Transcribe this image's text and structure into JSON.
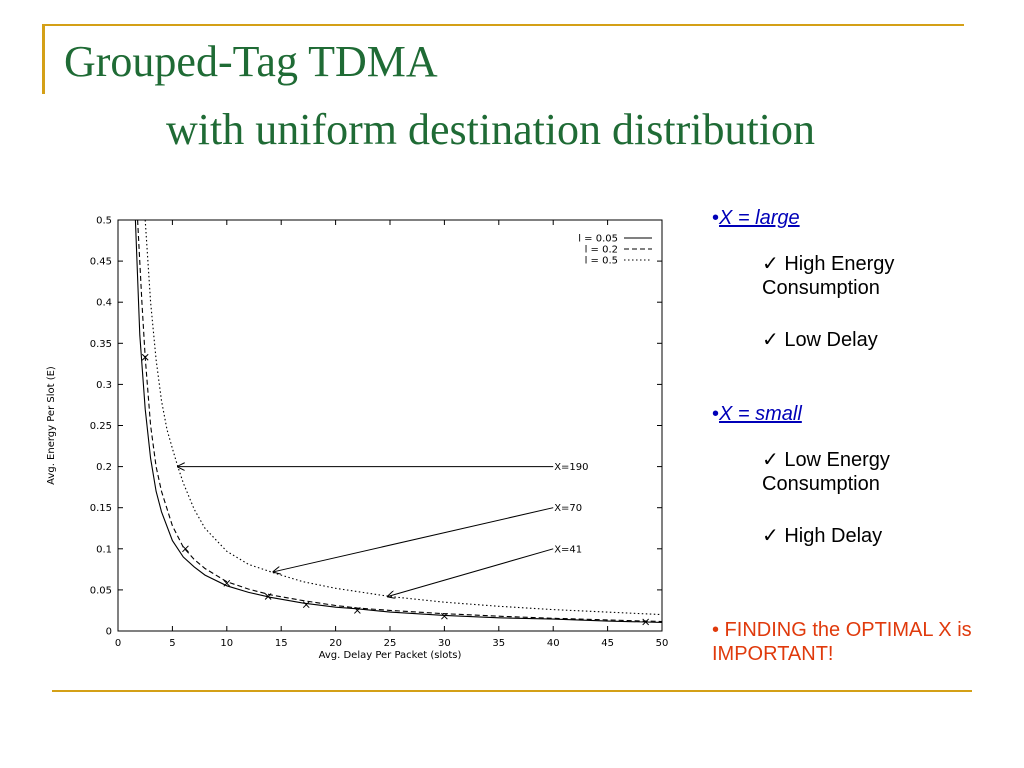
{
  "slide": {
    "title_line1": "Grouped-Tag TDMA",
    "title_line2": "with uniform destination distribution"
  },
  "bullets": [
    {
      "head": "X = large",
      "items": [
        "✓ High Energy Consumption",
        "✓ Low Delay"
      ]
    },
    {
      "head": "X = small",
      "items": [
        "✓ Low Energy Consumption",
        "✓ High Delay"
      ]
    }
  ],
  "finding": "• FINDING the OPTIMAL X is IMPORTANT!",
  "colors": {
    "title": "#1f6b35",
    "accent": "#d4a017",
    "bullet_head": "#0000b8",
    "finding": "#e03a0c"
  },
  "chart_data": {
    "type": "line",
    "xlabel": "Avg. Delay Per Packet (slots)",
    "ylabel": "Avg. Energy Per Slot (E)",
    "xlim": [
      0,
      50
    ],
    "ylim": [
      0,
      0.5
    ],
    "x_ticks": [
      0,
      5,
      10,
      15,
      20,
      25,
      30,
      35,
      40,
      45,
      50
    ],
    "y_ticks": [
      0,
      0.05,
      0.1,
      0.15,
      0.2,
      0.25,
      0.3,
      0.35,
      0.4,
      0.45,
      0.5
    ],
    "x_tick_labels": [
      "0",
      "5",
      "10",
      "15",
      "20",
      "25",
      "30",
      "35",
      "40",
      "45",
      "50"
    ],
    "y_tick_labels": [
      "0",
      "0.05",
      "0.1",
      "0.15",
      "0.2",
      "0.25",
      "0.3",
      "0.35",
      "0.4",
      "0.45",
      "0.5"
    ],
    "legend_position": "top-right",
    "series": [
      {
        "name": "l = 0.05",
        "style": "solid",
        "x": [
          1.6,
          2,
          2.5,
          3,
          3.5,
          4,
          5,
          6,
          7,
          8,
          10,
          12,
          14,
          17,
          20,
          22,
          25,
          30,
          35,
          40,
          45,
          48.5,
          50
        ],
        "y": [
          0.5,
          0.36,
          0.27,
          0.21,
          0.17,
          0.145,
          0.11,
          0.09,
          0.078,
          0.068,
          0.055,
          0.047,
          0.041,
          0.034,
          0.029,
          0.027,
          0.023,
          0.019,
          0.016,
          0.0145,
          0.012,
          0.011,
          0.0105
        ]
      },
      {
        "name": "l = 0.2",
        "style": "dashed",
        "x": [
          1.8,
          2.2,
          2.5,
          3,
          3.5,
          4,
          5,
          6,
          7,
          8,
          10,
          12,
          14,
          17,
          20,
          22,
          25,
          30,
          35,
          40,
          45,
          48.5,
          50
        ],
        "y": [
          0.5,
          0.4,
          0.333,
          0.25,
          0.2,
          0.17,
          0.128,
          0.102,
          0.087,
          0.076,
          0.06,
          0.051,
          0.044,
          0.037,
          0.031,
          0.028,
          0.025,
          0.021,
          0.018,
          0.0155,
          0.0135,
          0.012,
          0.0115
        ]
      },
      {
        "name": "l = 0.5",
        "style": "dotted",
        "x": [
          2.5,
          3,
          3.5,
          4,
          4.5,
          5,
          5.5,
          6,
          7,
          8,
          10,
          12,
          14.5,
          17,
          20,
          25,
          30,
          35,
          40,
          45,
          50
        ],
        "y": [
          0.5,
          0.4,
          0.33,
          0.28,
          0.245,
          0.222,
          0.2,
          0.18,
          0.148,
          0.125,
          0.097,
          0.081,
          0.07,
          0.06,
          0.052,
          0.042,
          0.035,
          0.03,
          0.026,
          0.023,
          0.02
        ]
      }
    ],
    "markers": [
      {
        "x": 2.5,
        "y": 0.333
      },
      {
        "x": 6.2,
        "y": 0.1
      },
      {
        "x": 10,
        "y": 0.058
      },
      {
        "x": 13.8,
        "y": 0.042
      },
      {
        "x": 17.3,
        "y": 0.032
      },
      {
        "x": 22,
        "y": 0.025
      },
      {
        "x": 30,
        "y": 0.018
      },
      {
        "x": 48.5,
        "y": 0.011
      }
    ],
    "annotations": [
      {
        "text": "X=190",
        "x": 40,
        "y": 0.2,
        "arrow_to": [
          5.5,
          0.2
        ]
      },
      {
        "text": "X=70",
        "x": 40,
        "y": 0.15,
        "arrow_to": [
          14.3,
          0.072
        ]
      },
      {
        "text": "X=41",
        "x": 40,
        "y": 0.1,
        "arrow_to": [
          24.8,
          0.042
        ]
      }
    ]
  }
}
